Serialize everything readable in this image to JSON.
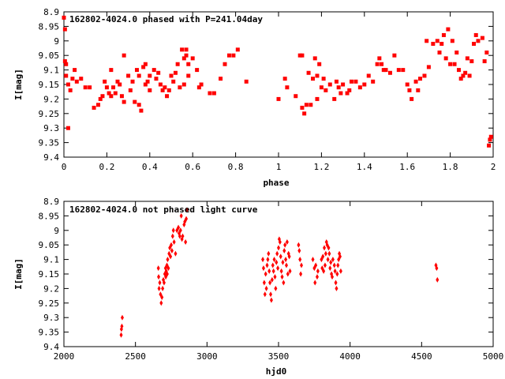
{
  "colors": {
    "marker": "#ff0000",
    "axes": "#000000",
    "background": "#ffffff"
  },
  "chart_data": [
    {
      "type": "scatter",
      "title": "162802-4024.0 phased with P=241.04day",
      "xlabel": "phase",
      "ylabel": "I[mag]",
      "xlim": [
        0,
        2
      ],
      "ylim": [
        9.4,
        8.9
      ],
      "y_inverted": true,
      "grid": false,
      "legend": "none",
      "marker": "filled-square",
      "x_ticks": [
        "0",
        "0.2",
        "0.4",
        "0.6",
        "0.8",
        "1",
        "1.2",
        "1.4",
        "1.6",
        "1.8",
        "2"
      ],
      "x_tick_values": [
        0,
        0.2,
        0.4,
        0.6,
        0.8,
        1.0,
        1.2,
        1.4,
        1.6,
        1.8,
        2.0
      ],
      "y_ticks": [
        "8.9",
        "8.95",
        "9",
        "9.05",
        "9.1",
        "9.15",
        "9.2",
        "9.25",
        "9.3",
        "9.35",
        "9.4"
      ],
      "y_tick_values": [
        8.9,
        8.95,
        9.0,
        9.05,
        9.1,
        9.15,
        9.2,
        9.25,
        9.3,
        9.35,
        9.4
      ],
      "points": [
        [
          0.0,
          8.92
        ],
        [
          0.005,
          8.96
        ],
        [
          0.005,
          9.07
        ],
        [
          0.01,
          9.08
        ],
        [
          0.01,
          9.12
        ],
        [
          0.02,
          9.15
        ],
        [
          0.02,
          9.3
        ],
        [
          0.03,
          9.17
        ],
        [
          0.04,
          9.13
        ],
        [
          0.05,
          9.1
        ],
        [
          0.06,
          9.14
        ],
        [
          0.08,
          9.13
        ],
        [
          0.1,
          9.16
        ],
        [
          0.12,
          9.16
        ],
        [
          0.14,
          9.23
        ],
        [
          0.16,
          9.22
        ],
        [
          0.17,
          9.2
        ],
        [
          0.18,
          9.19
        ],
        [
          0.19,
          9.14
        ],
        [
          0.2,
          9.16
        ],
        [
          0.21,
          9.18
        ],
        [
          0.22,
          9.1
        ],
        [
          0.22,
          9.19
        ],
        [
          0.23,
          9.16
        ],
        [
          0.24,
          9.18
        ],
        [
          0.25,
          9.14
        ],
        [
          0.26,
          9.15
        ],
        [
          0.27,
          9.19
        ],
        [
          0.28,
          9.21
        ],
        [
          0.28,
          9.05
        ],
        [
          0.3,
          9.12
        ],
        [
          0.31,
          9.17
        ],
        [
          0.32,
          9.14
        ],
        [
          0.33,
          9.21
        ],
        [
          0.34,
          9.1
        ],
        [
          0.35,
          9.12
        ],
        [
          0.35,
          9.22
        ],
        [
          0.36,
          9.24
        ],
        [
          0.37,
          9.09
        ],
        [
          0.38,
          9.15
        ],
        [
          0.38,
          9.08
        ],
        [
          0.39,
          9.14
        ],
        [
          0.4,
          9.12
        ],
        [
          0.4,
          9.17
        ],
        [
          0.42,
          9.1
        ],
        [
          0.43,
          9.13
        ],
        [
          0.44,
          9.11
        ],
        [
          0.45,
          9.15
        ],
        [
          0.46,
          9.17
        ],
        [
          0.47,
          9.16
        ],
        [
          0.48,
          9.19
        ],
        [
          0.49,
          9.17
        ],
        [
          0.5,
          9.12
        ],
        [
          0.51,
          9.14
        ],
        [
          0.52,
          9.11
        ],
        [
          0.53,
          9.08
        ],
        [
          0.54,
          9.16
        ],
        [
          0.55,
          9.03
        ],
        [
          0.56,
          9.06
        ],
        [
          0.56,
          9.15
        ],
        [
          0.57,
          9.05
        ],
        [
          0.57,
          9.03
        ],
        [
          0.58,
          9.08
        ],
        [
          0.58,
          9.12
        ],
        [
          0.6,
          9.06
        ],
        [
          0.62,
          9.1
        ],
        [
          0.63,
          9.16
        ],
        [
          0.64,
          9.15
        ],
        [
          0.68,
          9.18
        ],
        [
          0.7,
          9.18
        ],
        [
          0.73,
          9.13
        ],
        [
          0.75,
          9.08
        ],
        [
          0.77,
          9.05
        ],
        [
          0.79,
          9.05
        ],
        [
          0.81,
          9.03
        ],
        [
          0.85,
          9.14
        ],
        [
          1.0,
          9.2
        ],
        [
          1.03,
          9.13
        ],
        [
          1.04,
          9.16
        ],
        [
          1.08,
          9.19
        ],
        [
          1.1,
          9.05
        ],
        [
          1.11,
          9.05
        ],
        [
          1.11,
          9.23
        ],
        [
          1.12,
          9.25
        ],
        [
          1.13,
          9.22
        ],
        [
          1.14,
          9.11
        ],
        [
          1.15,
          9.22
        ],
        [
          1.16,
          9.13
        ],
        [
          1.17,
          9.06
        ],
        [
          1.18,
          9.12
        ],
        [
          1.18,
          9.2
        ],
        [
          1.19,
          9.08
        ],
        [
          1.2,
          9.16
        ],
        [
          1.21,
          9.13
        ],
        [
          1.22,
          9.17
        ],
        [
          1.24,
          9.15
        ],
        [
          1.26,
          9.2
        ],
        [
          1.27,
          9.14
        ],
        [
          1.28,
          9.16
        ],
        [
          1.29,
          9.18
        ],
        [
          1.3,
          9.15
        ],
        [
          1.32,
          9.18
        ],
        [
          1.33,
          9.17
        ],
        [
          1.34,
          9.14
        ],
        [
          1.36,
          9.14
        ],
        [
          1.38,
          9.16
        ],
        [
          1.4,
          9.15
        ],
        [
          1.42,
          9.12
        ],
        [
          1.44,
          9.14
        ],
        [
          1.46,
          9.08
        ],
        [
          1.47,
          9.06
        ],
        [
          1.48,
          9.08
        ],
        [
          1.49,
          9.1
        ],
        [
          1.5,
          9.1
        ],
        [
          1.52,
          9.11
        ],
        [
          1.54,
          9.05
        ],
        [
          1.56,
          9.1
        ],
        [
          1.58,
          9.1
        ],
        [
          1.6,
          9.15
        ],
        [
          1.61,
          9.17
        ],
        [
          1.62,
          9.2
        ],
        [
          1.64,
          9.14
        ],
        [
          1.65,
          9.17
        ],
        [
          1.66,
          9.13
        ],
        [
          1.68,
          9.12
        ],
        [
          1.69,
          9.0
        ],
        [
          1.7,
          9.09
        ],
        [
          1.72,
          9.01
        ],
        [
          1.74,
          9.0
        ],
        [
          1.75,
          9.04
        ],
        [
          1.76,
          9.01
        ],
        [
          1.77,
          8.98
        ],
        [
          1.78,
          9.06
        ],
        [
          1.79,
          8.96
        ],
        [
          1.8,
          9.08
        ],
        [
          1.81,
          9.0
        ],
        [
          1.82,
          9.08
        ],
        [
          1.83,
          9.04
        ],
        [
          1.84,
          9.1
        ],
        [
          1.85,
          9.13
        ],
        [
          1.86,
          9.12
        ],
        [
          1.87,
          9.11
        ],
        [
          1.88,
          9.06
        ],
        [
          1.89,
          9.12
        ],
        [
          1.9,
          9.07
        ],
        [
          1.91,
          9.01
        ],
        [
          1.92,
          8.98
        ],
        [
          1.93,
          9.0
        ],
        [
          1.95,
          8.99
        ],
        [
          1.96,
          9.07
        ],
        [
          1.97,
          9.04
        ],
        [
          1.98,
          9.36
        ],
        [
          1.985,
          9.34
        ],
        [
          1.99,
          9.33
        ]
      ]
    },
    {
      "type": "scatter",
      "title": "162802-4024.0 not phased light curve",
      "xlabel": "hjd0",
      "ylabel": "I[mag]",
      "xlim": [
        2000,
        5000
      ],
      "ylim": [
        9.4,
        8.9
      ],
      "y_inverted": true,
      "grid": false,
      "legend": "none",
      "marker": "filled-diamond",
      "x_ticks": [
        "2000",
        "2500",
        "3000",
        "3500",
        "4000",
        "4500",
        "5000"
      ],
      "x_tick_values": [
        2000,
        2500,
        3000,
        3500,
        4000,
        4500,
        5000
      ],
      "y_ticks": [
        "8.9",
        "8.95",
        "9",
        "9.05",
        "9.1",
        "9.15",
        "9.2",
        "9.25",
        "9.3",
        "9.35",
        "9.4"
      ],
      "y_tick_values": [
        8.9,
        8.95,
        9.0,
        9.05,
        9.1,
        9.15,
        9.2,
        9.25,
        9.3,
        9.35,
        9.4
      ],
      "points": [
        [
          2400,
          9.36
        ],
        [
          2402,
          9.34
        ],
        [
          2405,
          9.33
        ],
        [
          2408,
          9.3
        ],
        [
          2660,
          9.13
        ],
        [
          2662,
          9.16
        ],
        [
          2665,
          9.2
        ],
        [
          2670,
          9.18
        ],
        [
          2675,
          9.22
        ],
        [
          2680,
          9.25
        ],
        [
          2685,
          9.23
        ],
        [
          2690,
          9.2
        ],
        [
          2695,
          9.17
        ],
        [
          2700,
          9.18
        ],
        [
          2705,
          9.15
        ],
        [
          2710,
          9.13
        ],
        [
          2712,
          9.16
        ],
        [
          2715,
          9.14
        ],
        [
          2720,
          9.12
        ],
        [
          2722,
          9.15
        ],
        [
          2725,
          9.1
        ],
        [
          2730,
          9.13
        ],
        [
          2735,
          9.08
        ],
        [
          2740,
          9.06
        ],
        [
          2745,
          9.09
        ],
        [
          2750,
          9.05
        ],
        [
          2755,
          9.07
        ],
        [
          2760,
          9.02
        ],
        [
          2765,
          9.0
        ],
        [
          2770,
          9.04
        ],
        [
          2780,
          9.08
        ],
        [
          2790,
          9.0
        ],
        [
          2800,
          8.99
        ],
        [
          2805,
          9.01
        ],
        [
          2810,
          9.02
        ],
        [
          2815,
          9.0
        ],
        [
          2820,
          8.95
        ],
        [
          2825,
          9.03
        ],
        [
          2830,
          9.02
        ],
        [
          2840,
          8.98
        ],
        [
          2845,
          8.97
        ],
        [
          2850,
          9.04
        ],
        [
          2855,
          8.96
        ],
        [
          2860,
          8.93
        ],
        [
          3390,
          9.1
        ],
        [
          3395,
          9.13
        ],
        [
          3400,
          9.18
        ],
        [
          3405,
          9.22
        ],
        [
          3410,
          9.15
        ],
        [
          3415,
          9.2
        ],
        [
          3420,
          9.12
        ],
        [
          3425,
          9.1
        ],
        [
          3430,
          9.08
        ],
        [
          3435,
          9.14
        ],
        [
          3440,
          9.18
        ],
        [
          3445,
          9.22
        ],
        [
          3450,
          9.24
        ],
        [
          3455,
          9.17
        ],
        [
          3460,
          9.12
        ],
        [
          3465,
          9.14
        ],
        [
          3470,
          9.1
        ],
        [
          3475,
          9.16
        ],
        [
          3480,
          9.2
        ],
        [
          3485,
          9.11
        ],
        [
          3490,
          9.08
        ],
        [
          3495,
          9.13
        ],
        [
          3500,
          9.06
        ],
        [
          3505,
          9.03
        ],
        [
          3510,
          9.04
        ],
        [
          3515,
          9.09
        ],
        [
          3520,
          9.14
        ],
        [
          3525,
          9.16
        ],
        [
          3530,
          9.11
        ],
        [
          3535,
          9.18
        ],
        [
          3540,
          9.07
        ],
        [
          3545,
          9.05
        ],
        [
          3550,
          9.1
        ],
        [
          3555,
          9.12
        ],
        [
          3560,
          9.04
        ],
        [
          3565,
          9.15
        ],
        [
          3570,
          9.08
        ],
        [
          3575,
          9.09
        ],
        [
          3580,
          9.14
        ],
        [
          3640,
          9.05
        ],
        [
          3645,
          9.07
        ],
        [
          3650,
          9.1
        ],
        [
          3655,
          9.15
        ],
        [
          3660,
          9.12
        ],
        [
          3740,
          9.1
        ],
        [
          3750,
          9.13
        ],
        [
          3755,
          9.18
        ],
        [
          3760,
          9.12
        ],
        [
          3770,
          9.16
        ],
        [
          3775,
          9.14
        ],
        [
          3800,
          9.1
        ],
        [
          3805,
          9.13
        ],
        [
          3810,
          9.09
        ],
        [
          3815,
          9.14
        ],
        [
          3820,
          9.06
        ],
        [
          3825,
          9.12
        ],
        [
          3830,
          9.08
        ],
        [
          3835,
          9.04
        ],
        [
          3840,
          9.05
        ],
        [
          3845,
          9.1
        ],
        [
          3850,
          9.06
        ],
        [
          3855,
          9.08
        ],
        [
          3860,
          9.13
        ],
        [
          3865,
          9.11
        ],
        [
          3870,
          9.15
        ],
        [
          3875,
          9.16
        ],
        [
          3880,
          9.1
        ],
        [
          3890,
          9.12
        ],
        [
          3895,
          9.14
        ],
        [
          3900,
          9.18
        ],
        [
          3905,
          9.2
        ],
        [
          3910,
          9.15
        ],
        [
          3915,
          9.12
        ],
        [
          3920,
          9.1
        ],
        [
          3925,
          9.08
        ],
        [
          3930,
          9.09
        ],
        [
          3935,
          9.14
        ],
        [
          4600,
          9.12
        ],
        [
          4605,
          9.13
        ],
        [
          4610,
          9.17
        ]
      ]
    }
  ]
}
